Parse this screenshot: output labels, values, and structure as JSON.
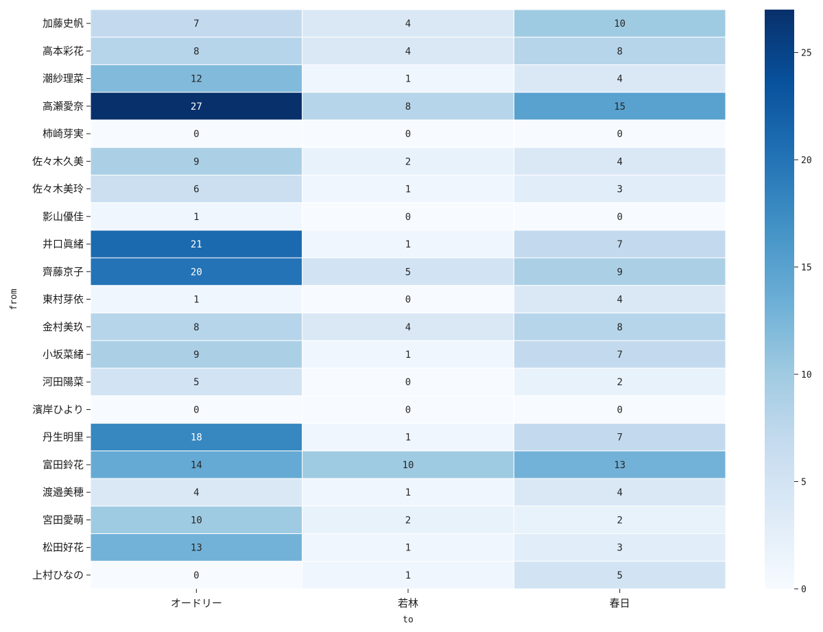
{
  "chart_data": {
    "type": "heatmap",
    "title": "",
    "xlabel": "to",
    "ylabel": "from",
    "x_categories": [
      "オードリー",
      "若林",
      "春日"
    ],
    "y_categories": [
      "加藤史帆",
      "高本彩花",
      "潮紗理菜",
      "高瀬愛奈",
      "柿崎芽実",
      "佐々木久美",
      "佐々木美玲",
      "影山優佳",
      "井口眞緒",
      "齊藤京子",
      "東村芽依",
      "金村美玖",
      "小坂菜緒",
      "河田陽菜",
      "濱岸ひより",
      "丹生明里",
      "富田鈴花",
      "渡邉美穂",
      "宮田愛萌",
      "松田好花",
      "上村ひなの"
    ],
    "values": [
      [
        7,
        4,
        10
      ],
      [
        8,
        4,
        8
      ],
      [
        12,
        1,
        4
      ],
      [
        27,
        8,
        15
      ],
      [
        0,
        0,
        0
      ],
      [
        9,
        2,
        4
      ],
      [
        6,
        1,
        3
      ],
      [
        1,
        0,
        0
      ],
      [
        21,
        1,
        7
      ],
      [
        20,
        5,
        9
      ],
      [
        1,
        0,
        4
      ],
      [
        8,
        4,
        8
      ],
      [
        9,
        1,
        7
      ],
      [
        5,
        0,
        2
      ],
      [
        0,
        0,
        0
      ],
      [
        18,
        1,
        7
      ],
      [
        14,
        10,
        13
      ],
      [
        4,
        1,
        4
      ],
      [
        10,
        2,
        2
      ],
      [
        13,
        1,
        3
      ],
      [
        0,
        1,
        5
      ]
    ],
    "colorscale": "Blues",
    "vmin": 0,
    "vmax": 27,
    "colorbar_ticks": [
      "0",
      "5",
      "10",
      "15",
      "20",
      "25"
    ],
    "annotated": true
  }
}
